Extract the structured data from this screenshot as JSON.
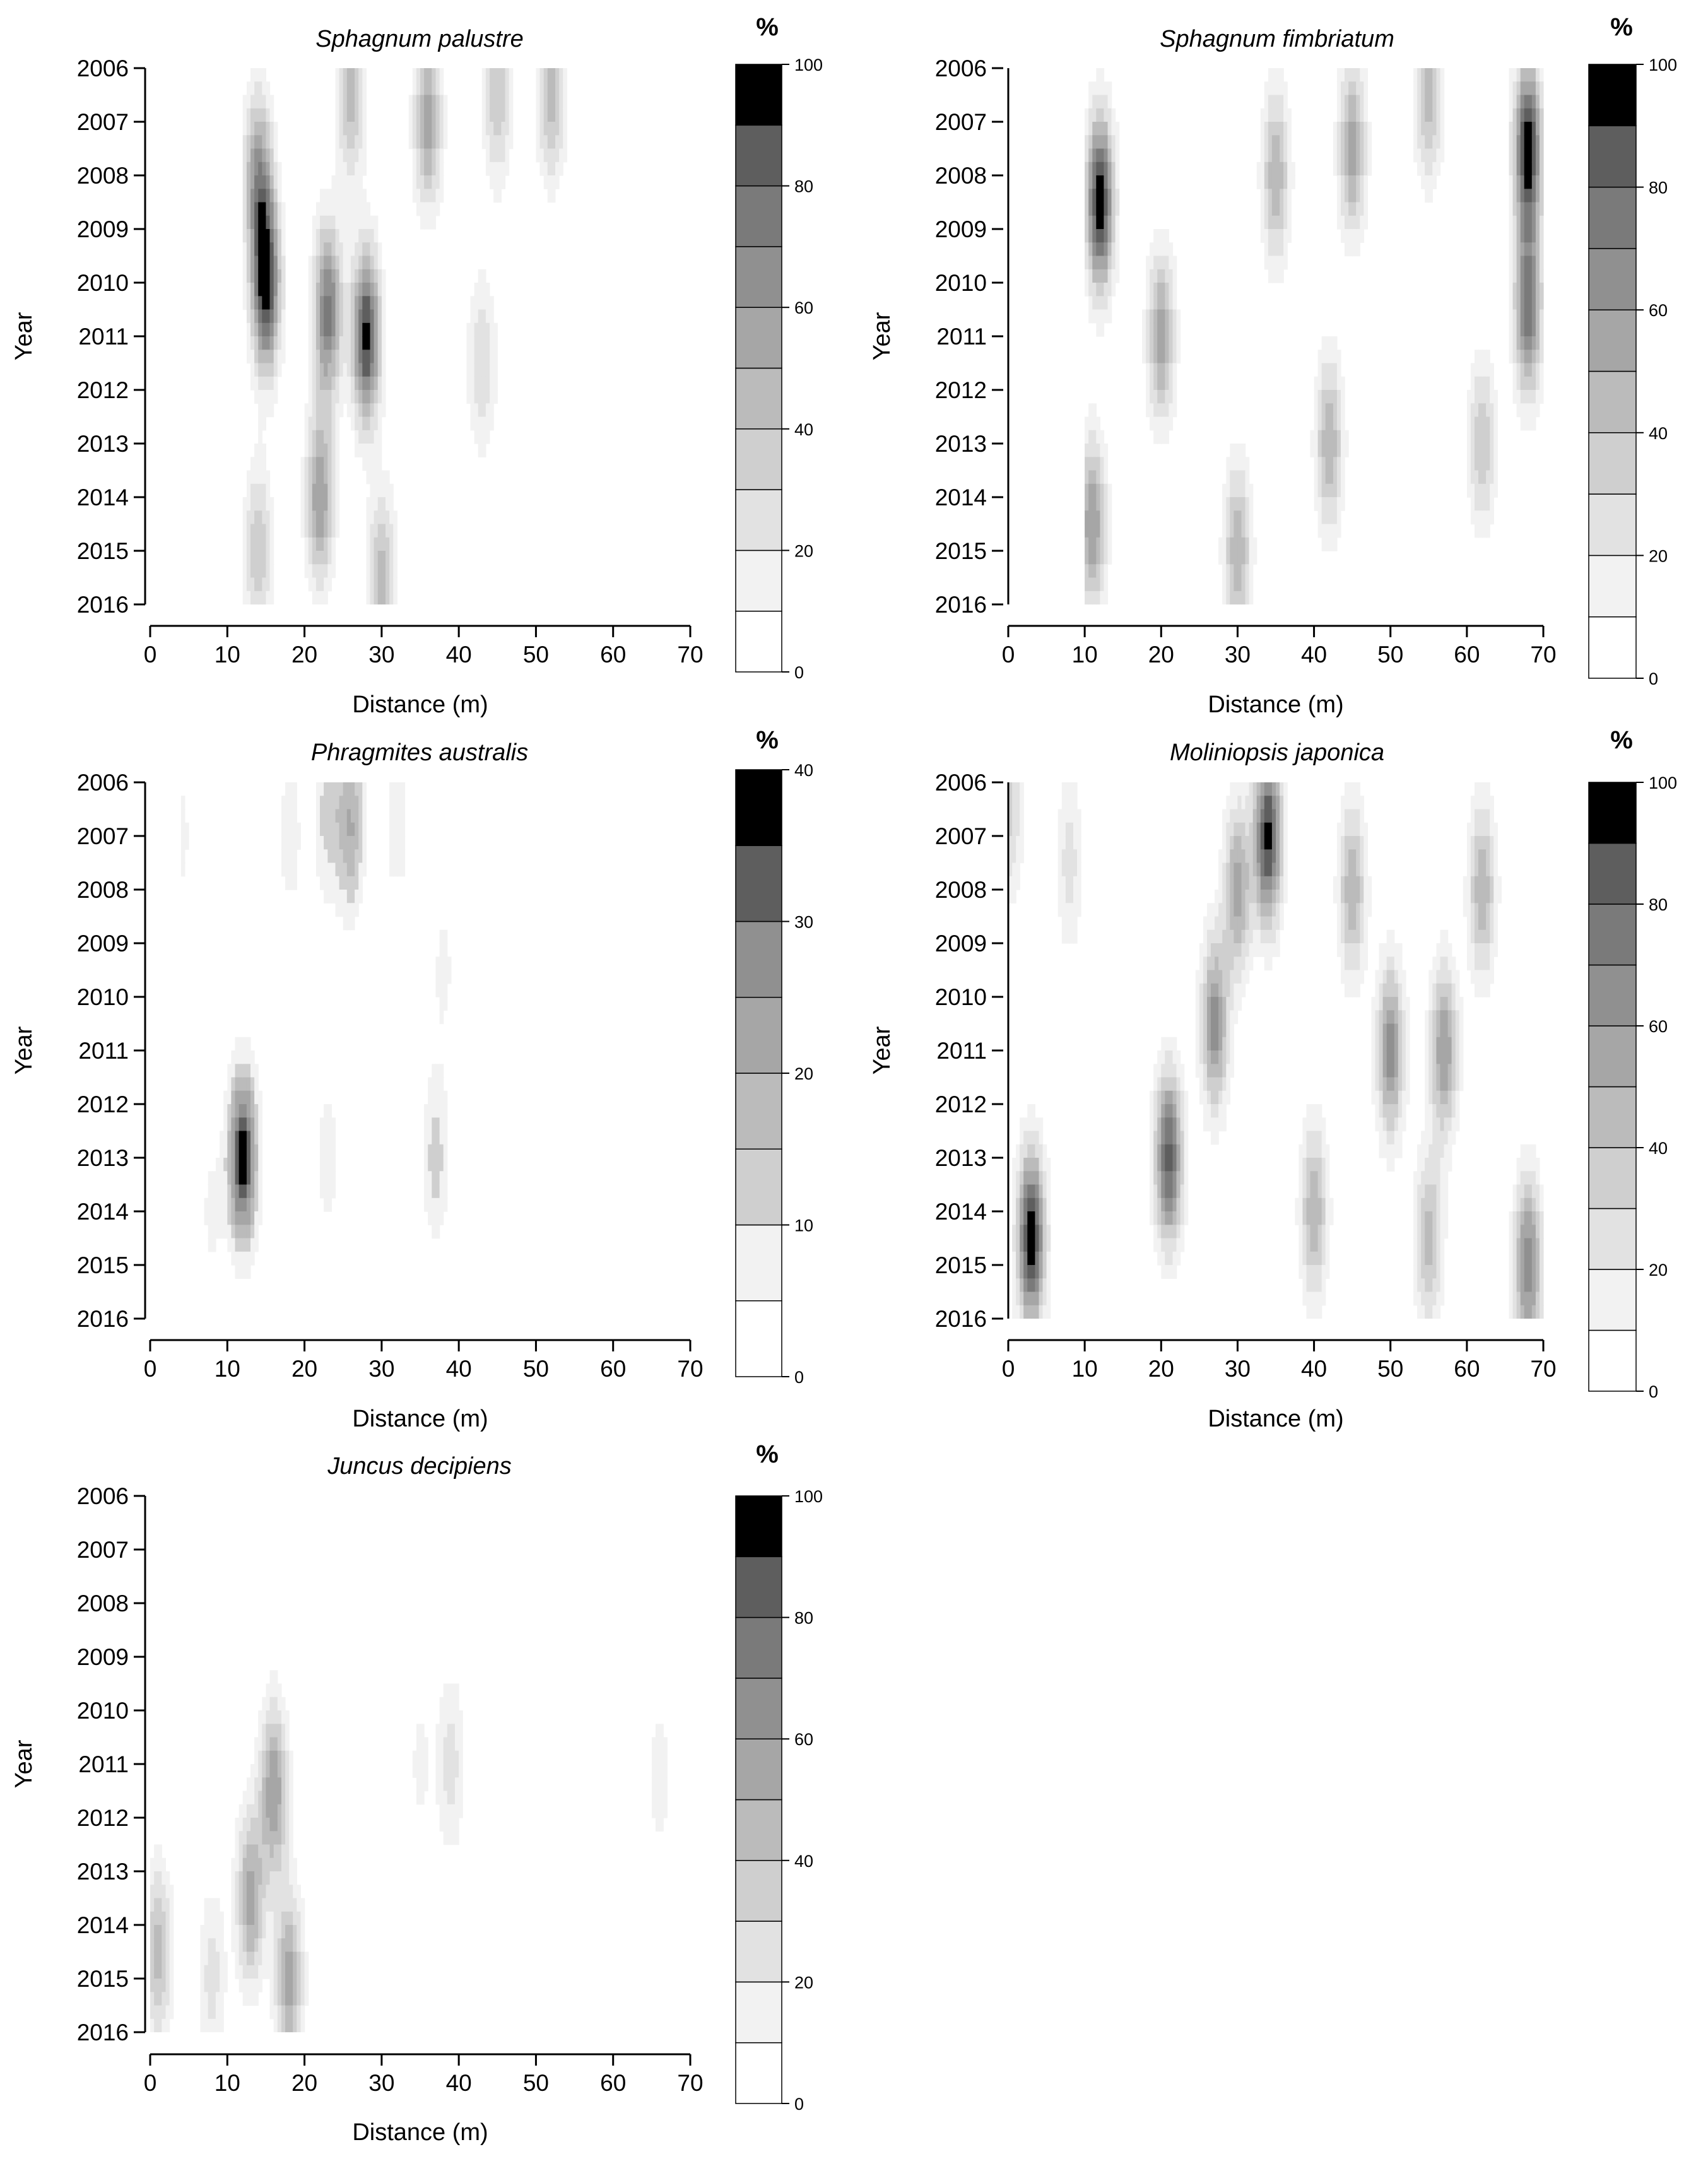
{
  "figure": {
    "y_ticks": [
      "2006",
      "2007",
      "2008",
      "2009",
      "2010",
      "2011",
      "2012",
      "2013",
      "2014",
      "2015",
      "2016"
    ],
    "x_ticks": [
      "0",
      "10",
      "20",
      "30",
      "40",
      "50",
      "60",
      "70"
    ],
    "colorbar_unit": "%",
    "colors": {
      "levels": [
        "#ffffff",
        "#f2f2f2",
        "#e2e2e2",
        "#cfcfcf",
        "#bbbbbb",
        "#a6a6a6",
        "#909090",
        "#7a7a7a",
        "#5e5e5e",
        "#000000"
      ]
    }
  },
  "chart_data": [
    {
      "type": "heatmap",
      "title": "Sphagnum palustre",
      "xlabel": "Distance (m)",
      "ylabel": "Year",
      "xlim": [
        0,
        70
      ],
      "ylim": [
        2006,
        2016
      ],
      "colorbar": {
        "label": "%",
        "min": 0,
        "max": 100,
        "ticks": [
          "0",
          "20",
          "40",
          "60",
          "80",
          "100"
        ],
        "levels": 10
      },
      "x_extent": [
        12,
        60
      ],
      "peaks": [
        {
          "x": 15,
          "year": 2010,
          "value": 100
        },
        {
          "x": 28,
          "year": 2011,
          "value": 95
        },
        {
          "x": 23,
          "year": 2010.5,
          "value": 75
        },
        {
          "x": 14,
          "year": 2008,
          "value": 60
        },
        {
          "x": 36,
          "year": 2007,
          "value": 55
        },
        {
          "x": 22,
          "year": 2014,
          "value": 60
        },
        {
          "x": 26,
          "year": 2006.5,
          "value": 45
        },
        {
          "x": 45,
          "year": 2006.5,
          "value": 40
        },
        {
          "x": 52,
          "year": 2006.5,
          "value": 45
        },
        {
          "x": 43,
          "year": 2011.5,
          "value": 30
        },
        {
          "x": 14,
          "year": 2015,
          "value": 40
        },
        {
          "x": 30,
          "year": 2015.5,
          "value": 45
        }
      ]
    },
    {
      "type": "heatmap",
      "title": "Sphagnum fimbriatum",
      "xlabel": "Distance (m)",
      "ylabel": "Year",
      "xlim": [
        0,
        70
      ],
      "ylim": [
        2006,
        2016
      ],
      "colorbar": {
        "label": "%",
        "min": 0,
        "max": 100,
        "ticks": [
          "0",
          "20",
          "40",
          "60",
          "80",
          "100"
        ],
        "levels": 10
      },
      "x_extent": [
        10,
        70
      ],
      "peaks": [
        {
          "x": 12,
          "year": 2008.5,
          "value": 100
        },
        {
          "x": 68,
          "year": 2007.5,
          "value": 100
        },
        {
          "x": 68,
          "year": 2010.5,
          "value": 75
        },
        {
          "x": 20,
          "year": 2011,
          "value": 55
        },
        {
          "x": 35,
          "year": 2008,
          "value": 50
        },
        {
          "x": 45,
          "year": 2007.5,
          "value": 55
        },
        {
          "x": 42,
          "year": 2013,
          "value": 50
        },
        {
          "x": 11,
          "year": 2014.5,
          "value": 60
        },
        {
          "x": 30,
          "year": 2015,
          "value": 50
        },
        {
          "x": 62,
          "year": 2013,
          "value": 40
        },
        {
          "x": 55,
          "year": 2006.5,
          "value": 45
        }
      ]
    },
    {
      "type": "heatmap",
      "title": "Phragmites australis",
      "xlabel": "Distance (m)",
      "ylabel": "Year",
      "xlim": [
        0,
        70
      ],
      "ylim": [
        2006,
        2016
      ],
      "colorbar": {
        "label": "%",
        "min": 0,
        "max": 40,
        "ticks": [
          "0",
          "10",
          "20",
          "30",
          "40"
        ],
        "levels": 8
      },
      "x_extent": [
        4,
        40
      ],
      "peaks": [
        {
          "x": 12,
          "year": 2013,
          "value": 40
        },
        {
          "x": 26,
          "year": 2006.8,
          "value": 20
        },
        {
          "x": 23,
          "year": 2006.6,
          "value": 12
        },
        {
          "x": 18,
          "year": 2007,
          "value": 8
        },
        {
          "x": 32,
          "year": 2006.8,
          "value": 8
        },
        {
          "x": 4,
          "year": 2007,
          "value": 6
        },
        {
          "x": 37,
          "year": 2013,
          "value": 12
        },
        {
          "x": 23,
          "year": 2013,
          "value": 7
        },
        {
          "x": 8,
          "year": 2014,
          "value": 6
        },
        {
          "x": 38,
          "year": 2009.5,
          "value": 6
        }
      ]
    },
    {
      "type": "heatmap",
      "title": "Moliniopsis japonica",
      "xlabel": "Distance (m)",
      "ylabel": "Year",
      "xlim": [
        0,
        70
      ],
      "ylim": [
        2006,
        2016
      ],
      "colorbar": {
        "label": "%",
        "min": 0,
        "max": 100,
        "ticks": [
          "0",
          "20",
          "40",
          "60",
          "80",
          "100"
        ],
        "levels": 10
      },
      "x_extent": [
        0,
        70
      ],
      "peaks": [
        {
          "x": 3,
          "year": 2014.5,
          "value": 100
        },
        {
          "x": 21,
          "year": 2013,
          "value": 85
        },
        {
          "x": 34,
          "year": 2007,
          "value": 95
        },
        {
          "x": 27,
          "year": 2010.5,
          "value": 65
        },
        {
          "x": 50,
          "year": 2011,
          "value": 65
        },
        {
          "x": 57,
          "year": 2011,
          "value": 60
        },
        {
          "x": 68,
          "year": 2015,
          "value": 70
        },
        {
          "x": 30,
          "year": 2008,
          "value": 55
        },
        {
          "x": 45,
          "year": 2008,
          "value": 50
        },
        {
          "x": 62,
          "year": 2008,
          "value": 50
        },
        {
          "x": 40,
          "year": 2014,
          "value": 50
        },
        {
          "x": 55,
          "year": 2014.5,
          "value": 45
        },
        {
          "x": 0,
          "year": 2006.5,
          "value": 35
        },
        {
          "x": 8,
          "year": 2007.5,
          "value": 25
        }
      ]
    },
    {
      "type": "heatmap",
      "title": "Juncus decipiens",
      "xlabel": "Distance (m)",
      "ylabel": "Year",
      "xlim": [
        0,
        70
      ],
      "ylim": [
        2006,
        2016
      ],
      "colorbar": {
        "label": "%",
        "min": 0,
        "max": 100,
        "ticks": [
          "0",
          "20",
          "40",
          "60",
          "80",
          "100"
        ],
        "levels": 10
      },
      "x_extent": [
        0,
        70
      ],
      "peaks": [
        {
          "x": 16,
          "year": 2011.5,
          "value": 60
        },
        {
          "x": 13,
          "year": 2013.5,
          "value": 55
        },
        {
          "x": 18,
          "year": 2015,
          "value": 55
        },
        {
          "x": 1,
          "year": 2014.5,
          "value": 45
        },
        {
          "x": 8,
          "year": 2015,
          "value": 25
        },
        {
          "x": 39,
          "year": 2011,
          "value": 25
        },
        {
          "x": 35,
          "year": 2011,
          "value": 12
        },
        {
          "x": 66,
          "year": 2011.3,
          "value": 15
        },
        {
          "x": 23,
          "year": 2011.5,
          "value": 10
        },
        {
          "x": 67,
          "year": 2015.5,
          "value": 10
        }
      ]
    }
  ]
}
